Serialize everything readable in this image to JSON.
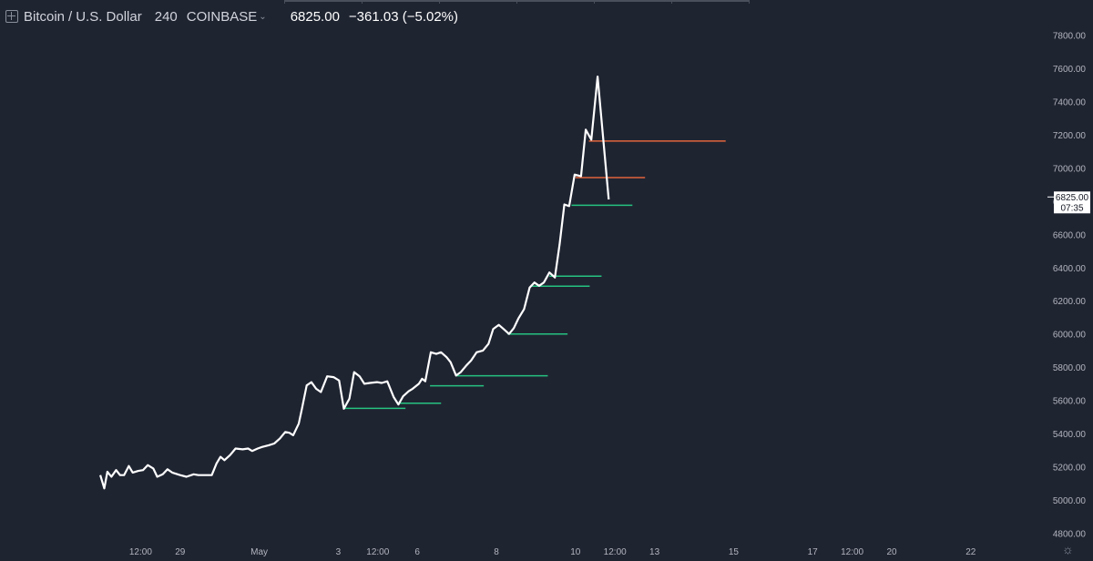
{
  "header": {
    "symbol_left": "Bitcoin",
    "symbol_sep": "/",
    "symbol_right": "U.S. Dollar",
    "interval": "240",
    "exchange": "COINBASE",
    "last_price": "6825.00",
    "change": "−361.03 (−5.02%)"
  },
  "price_tag": {
    "price": "6825.00",
    "countdown": "07:35"
  },
  "colors": {
    "background": "#1f2431",
    "line": "#ffffff",
    "support": "#26c281",
    "resistance": "#e0643c",
    "axis_text": "#b2b5be"
  },
  "chart_data": {
    "type": "line",
    "title": "",
    "xlabel": "",
    "ylabel": "",
    "ylim": [
      4800,
      7800
    ],
    "y_ticks": [
      4800,
      5000,
      5200,
      5400,
      5600,
      5800,
      6000,
      6200,
      6400,
      6600,
      6800,
      7000,
      7200,
      7400,
      7600,
      7800
    ],
    "y_tick_labels": [
      "4800.00",
      "5000.00",
      "5200.00",
      "5400.00",
      "5600.00",
      "5800.00",
      "6000.00",
      "6200.00",
      "6400.00",
      "6600.00",
      "6800.00",
      "7000.00",
      "7200.00",
      "7400.00",
      "7600.00",
      "7800.00"
    ],
    "x_ticks": [
      {
        "label": "12:00",
        "t": 0.5
      },
      {
        "label": "29",
        "t": 1
      },
      {
        "label": "May",
        "t": 2
      },
      {
        "label": "3",
        "t": 3
      },
      {
        "label": "12:00",
        "t": 3.5
      },
      {
        "label": "6",
        "t": 4
      },
      {
        "label": "8",
        "t": 5
      },
      {
        "label": "10",
        "t": 6
      },
      {
        "label": "12:00",
        "t": 6.5
      },
      {
        "label": "13",
        "t": 7
      },
      {
        "label": "15",
        "t": 8
      },
      {
        "label": "17",
        "t": 9
      },
      {
        "label": "12:00",
        "t": 9.5
      },
      {
        "label": "20",
        "t": 10
      },
      {
        "label": "22",
        "t": 11
      }
    ],
    "series": [
      {
        "values": [
          [
            -0.01,
            5150
          ],
          [
            0.04,
            5070
          ],
          [
            0.08,
            5170
          ],
          [
            0.13,
            5140
          ],
          [
            0.19,
            5180
          ],
          [
            0.24,
            5150
          ],
          [
            0.29,
            5150
          ],
          [
            0.35,
            5205
          ],
          [
            0.4,
            5165
          ],
          [
            0.47,
            5175
          ],
          [
            0.53,
            5180
          ],
          [
            0.59,
            5210
          ],
          [
            0.66,
            5190
          ],
          [
            0.71,
            5140
          ],
          [
            0.78,
            5155
          ],
          [
            0.84,
            5185
          ],
          [
            0.9,
            5165
          ],
          [
            1.0,
            5150
          ],
          [
            1.08,
            5140
          ],
          [
            1.17,
            5155
          ],
          [
            1.23,
            5150
          ],
          [
            1.32,
            5150
          ],
          [
            1.4,
            5150
          ],
          [
            1.46,
            5220
          ],
          [
            1.51,
            5260
          ],
          [
            1.56,
            5240
          ],
          [
            1.63,
            5270
          ],
          [
            1.7,
            5310
          ],
          [
            1.79,
            5305
          ],
          [
            1.86,
            5310
          ],
          [
            1.91,
            5295
          ],
          [
            1.98,
            5310
          ],
          [
            2.04,
            5320
          ],
          [
            2.12,
            5330
          ],
          [
            2.19,
            5340
          ],
          [
            2.26,
            5370
          ],
          [
            2.33,
            5410
          ],
          [
            2.38,
            5405
          ],
          [
            2.43,
            5390
          ],
          [
            2.5,
            5460
          ],
          [
            2.54,
            5550
          ],
          [
            2.6,
            5690
          ],
          [
            2.66,
            5710
          ],
          [
            2.72,
            5670
          ],
          [
            2.78,
            5650
          ],
          [
            2.86,
            5745
          ],
          [
            2.94,
            5740
          ],
          [
            3.01,
            5720
          ],
          [
            3.07,
            5550
          ],
          [
            3.14,
            5610
          ],
          [
            3.2,
            5770
          ],
          [
            3.27,
            5745
          ],
          [
            3.33,
            5700
          ],
          [
            3.4,
            5705
          ],
          [
            3.49,
            5710
          ],
          [
            3.55,
            5705
          ],
          [
            3.62,
            5715
          ],
          [
            3.7,
            5620
          ],
          [
            3.76,
            5575
          ],
          [
            3.82,
            5625
          ],
          [
            3.89,
            5655
          ],
          [
            3.94,
            5670
          ],
          [
            4.02,
            5700
          ],
          [
            4.06,
            5730
          ],
          [
            4.1,
            5715
          ],
          [
            4.17,
            5890
          ],
          [
            4.24,
            5880
          ],
          [
            4.3,
            5890
          ],
          [
            4.37,
            5860
          ],
          [
            4.42,
            5830
          ],
          [
            4.49,
            5750
          ],
          [
            4.55,
            5770
          ],
          [
            4.62,
            5810
          ],
          [
            4.68,
            5840
          ],
          [
            4.75,
            5890
          ],
          [
            4.83,
            5900
          ],
          [
            4.9,
            5940
          ],
          [
            4.96,
            6030
          ],
          [
            5.03,
            6055
          ],
          [
            5.09,
            6030
          ],
          [
            5.16,
            6000
          ],
          [
            5.22,
            6035
          ],
          [
            5.28,
            6095
          ],
          [
            5.35,
            6150
          ],
          [
            5.42,
            6280
          ],
          [
            5.48,
            6310
          ],
          [
            5.54,
            6290
          ],
          [
            5.6,
            6310
          ],
          [
            5.67,
            6370
          ],
          [
            5.74,
            6340
          ],
          [
            5.8,
            6540
          ],
          [
            5.86,
            6780
          ],
          [
            5.92,
            6770
          ],
          [
            5.99,
            6960
          ],
          [
            6.07,
            6950
          ],
          [
            6.13,
            7230
          ],
          [
            6.2,
            7170
          ],
          [
            6.28,
            7550
          ],
          [
            6.42,
            6810
          ]
        ]
      }
    ],
    "horizontal_lines": [
      {
        "kind": "support",
        "y": 5552,
        "x_start": 3.07,
        "x_end": 3.85
      },
      {
        "kind": "support",
        "y": 5583,
        "x_start": 3.78,
        "x_end": 4.3
      },
      {
        "kind": "support",
        "y": 5688,
        "x_start": 4.16,
        "x_end": 4.84
      },
      {
        "kind": "support",
        "y": 5748,
        "x_start": 4.49,
        "x_end": 5.65
      },
      {
        "kind": "support",
        "y": 6000,
        "x_start": 5.14,
        "x_end": 5.9
      },
      {
        "kind": "support",
        "y": 6288,
        "x_start": 5.45,
        "x_end": 6.18
      },
      {
        "kind": "support",
        "y": 6348,
        "x_start": 5.67,
        "x_end": 6.33
      },
      {
        "kind": "support",
        "y": 6775,
        "x_start": 5.95,
        "x_end": 6.72
      },
      {
        "kind": "resistance",
        "y": 6942,
        "x_start": 6.0,
        "x_end": 6.88
      },
      {
        "kind": "resistance",
        "y": 7162,
        "x_start": 6.17,
        "x_end": 7.9
      }
    ]
  }
}
